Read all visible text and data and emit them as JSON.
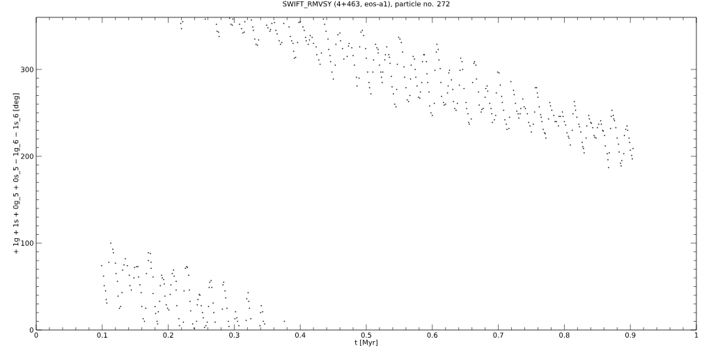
{
  "chart_data": {
    "type": "scatter",
    "title": "SWIFT_RMVSY (4+463, eos-a1), particle no. 272",
    "xlabel": "t [Myr]",
    "ylabel": "+ 1g + 1s + 0g_5 + 0s_5 − 1g_6 − 1s_6 [deg]",
    "xlim": [
      0,
      1
    ],
    "ylim": [
      0,
      360
    ],
    "xticks": [
      0,
      0.1,
      0.2,
      0.3,
      0.4,
      0.5,
      0.6,
      0.7,
      0.8,
      0.9,
      1
    ],
    "yticks": [
      0,
      100,
      200,
      300
    ],
    "marker": "square",
    "series": [
      {
        "color": "#000000",
        "x": [
          0.099,
          0.102,
          0.103,
          0.105,
          0.106,
          0.107,
          0.113,
          0.116,
          0.117,
          0.11,
          0.12,
          0.121,
          0.123,
          0.124,
          0.126,
          0.128,
          0.13,
          0.131,
          0.133,
          0.135,
          0.138,
          0.141,
          0.142,
          0.144,
          0.148,
          0.149,
          0.152,
          0.154,
          0.155,
          0.157,
          0.159,
          0.16,
          0.162,
          0.164,
          0.166,
          0.167,
          0.17,
          0.17,
          0.173,
          0.174,
          0.174,
          0.177,
          0.177,
          0.18,
          0.181,
          0.183,
          0.184,
          0.185,
          0.187,
          0.188,
          0.19,
          0.191,
          0.193,
          0.194,
          0.195,
          0.197,
          0.199,
          0.201,
          0.203,
          0.204,
          0.206,
          0.208,
          0.209,
          0.212,
          0.212,
          0.213,
          0.216,
          0.217,
          0.223,
          0.224,
          0.226,
          0.228,
          0.229,
          0.231,
          0.232,
          0.233,
          0.234,
          0.237,
          0.239,
          0.243,
          0.244,
          0.245,
          0.247,
          0.248,
          0.25,
          0.252,
          0.253,
          0.255,
          0.257,
          0.259,
          0.261,
          0.262,
          0.263,
          0.265,
          0.266,
          0.268,
          0.269,
          0.271,
          0.282,
          0.283,
          0.284,
          0.286,
          0.287,
          0.289,
          0.291,
          0.292,
          0.301,
          0.302,
          0.304,
          0.305,
          0.307,
          0.318,
          0.319,
          0.321,
          0.322,
          0.323,
          0.325,
          0.339,
          0.34,
          0.341,
          0.343,
          0.344,
          0.346,
          0.376,
          0.219,
          0.222,
          0.22,
          0.256,
          0.273,
          0.274,
          0.276,
          0.277,
          0.293,
          0.295,
          0.297,
          0.298,
          0.308,
          0.311,
          0.313,
          0.315,
          0.316,
          0.326,
          0.328,
          0.329,
          0.331,
          0.333,
          0.335,
          0.337,
          0.349,
          0.351,
          0.354,
          0.355,
          0.357,
          0.361,
          0.363,
          0.365,
          0.368,
          0.37,
          0.372,
          0.375,
          0.383,
          0.385,
          0.387,
          0.389,
          0.39,
          0.391,
          0.393,
          0.396,
          0.398,
          0.4,
          0.404,
          0.406,
          0.408,
          0.409,
          0.412,
          0.414,
          0.415,
          0.418,
          0.42,
          0.424,
          0.425,
          0.428,
          0.43,
          0.432,
          0.435,
          0.437,
          0.439,
          0.442,
          0.443,
          0.445,
          0.446,
          0.448,
          0.45,
          0.453,
          0.454,
          0.457,
          0.46,
          0.461,
          0.464,
          0.466,
          0.471,
          0.473,
          0.474,
          0.478,
          0.48,
          0.482,
          0.485,
          0.486,
          0.489,
          0.49,
          0.492,
          0.494,
          0.496,
          0.499,
          0.5,
          0.502,
          0.504,
          0.505,
          0.507,
          0.51,
          0.511,
          0.514,
          0.516,
          0.518,
          0.518,
          0.52,
          0.522,
          0.523,
          0.524,
          0.525,
          0.528,
          0.529,
          0.531,
          0.534,
          0.535,
          0.536,
          0.538,
          0.539,
          0.541,
          0.543,
          0.545,
          0.546,
          0.547,
          0.549,
          0.551,
          0.553,
          0.555,
          0.557,
          0.558,
          0.56,
          0.562,
          0.564,
          0.566,
          0.567,
          0.568,
          0.571,
          0.573,
          0.574,
          0.575,
          0.577,
          0.579,
          0.581,
          0.582,
          0.584,
          0.585,
          0.587,
          0.588,
          0.591,
          0.592,
          0.593,
          0.595,
          0.596,
          0.598,
          0.6,
          0.603,
          0.604,
          0.606,
          0.607,
          0.609,
          0.61,
          0.612,
          0.613,
          0.614,
          0.617,
          0.618,
          0.62,
          0.623,
          0.624,
          0.625,
          0.626,
          0.629,
          0.631,
          0.632,
          0.634,
          0.636,
          0.638,
          0.641,
          0.642,
          0.643,
          0.645,
          0.646,
          0.648,
          0.651,
          0.652,
          0.654,
          0.655,
          0.656,
          0.659,
          0.661,
          0.663,
          0.664,
          0.666,
          0.667,
          0.67,
          0.671,
          0.674,
          0.675,
          0.677,
          0.68,
          0.681,
          0.683,
          0.684,
          0.687,
          0.689,
          0.69,
          0.691,
          0.694,
          0.696,
          0.697,
          0.699,
          0.701,
          0.703,
          0.705,
          0.706,
          0.708,
          0.71,
          0.712,
          0.713,
          0.716,
          0.717,
          0.719,
          0.723,
          0.724,
          0.726,
          0.728,
          0.73,
          0.731,
          0.733,
          0.734,
          0.737,
          0.739,
          0.741,
          0.744,
          0.746,
          0.748,
          0.75,
          0.753,
          0.755,
          0.756,
          0.758,
          0.759,
          0.76,
          0.762,
          0.764,
          0.765,
          0.766,
          0.768,
          0.77,
          0.771,
          0.772,
          0.776,
          0.778,
          0.779,
          0.781,
          0.784,
          0.786,
          0.788,
          0.791,
          0.792,
          0.794,
          0.797,
          0.798,
          0.8,
          0.802,
          0.804,
          0.806,
          0.807,
          0.809,
          0.812,
          0.813,
          0.815,
          0.816,
          0.817,
          0.819,
          0.822,
          0.823,
          0.825,
          0.827,
          0.828,
          0.829,
          0.83,
          0.833,
          0.834,
          0.837,
          0.838,
          0.84,
          0.841,
          0.843,
          0.845,
          0.846,
          0.848,
          0.85,
          0.852,
          0.855,
          0.856,
          0.858,
          0.859,
          0.861,
          0.862,
          0.865,
          0.866,
          0.867,
          0.868,
          0.87,
          0.871,
          0.872,
          0.874,
          0.875,
          0.876,
          0.878,
          0.88,
          0.882,
          0.883,
          0.885,
          0.886,
          0.887,
          0.89,
          0.891,
          0.893,
          0.895,
          0.896,
          0.898,
          0.899,
          0.9,
          0.902,
          0.903,
          0.904
        ],
        "values": [
          74,
          62,
          51,
          45,
          35,
          31,
          100,
          93,
          89,
          78,
          77,
          65,
          56,
          39,
          25,
          27,
          43,
          69,
          75,
          82,
          74,
          63,
          51,
          46,
          60,
          72,
          73,
          73,
          61,
          52,
          43,
          27,
          13,
          10,
          25,
          65,
          80,
          89,
          88,
          78,
          71,
          61,
          42,
          27,
          19,
          10,
          7,
          21,
          33,
          51,
          63,
          60,
          58,
          53,
          39,
          29,
          25,
          23,
          41,
          52,
          65,
          69,
          62,
          56,
          46,
          28,
          13,
          5,
          9,
          45,
          71,
          73,
          72,
          63,
          46,
          33,
          22,
          7,
          2,
          10,
          29,
          35,
          41,
          40,
          28,
          20,
          14,
          3,
          5,
          9,
          27,
          49,
          55,
          57,
          49,
          31,
          20,
          9,
          24,
          52,
          55,
          45,
          37,
          25,
          10,
          4,
          13,
          21,
          14,
          10,
          5,
          11,
          36,
          43,
          33,
          25,
          13,
          5,
          20,
          28,
          21,
          10,
          7,
          10,
          353,
          355,
          347,
          358,
          352,
          344,
          343,
          338,
          359,
          352,
          351,
          358,
          352,
          347,
          342,
          343,
          355,
          357,
          349,
          345,
          335,
          329,
          328,
          334,
          351,
          348,
          344,
          346,
          353,
          354,
          345,
          341,
          333,
          329,
          331,
          353,
          349,
          338,
          333,
          330,
          321,
          313,
          314,
          331,
          354,
          355,
          349,
          345,
          337,
          333,
          329,
          334,
          339,
          337,
          330,
          326,
          317,
          311,
          306,
          319,
          358,
          352,
          344,
          335,
          323,
          316,
          309,
          297,
          289,
          305,
          329,
          340,
          342,
          333,
          324,
          312,
          315,
          327,
          330,
          325,
          316,
          305,
          291,
          281,
          290,
          326,
          343,
          345,
          339,
          324,
          313,
          297,
          285,
          279,
          272,
          297,
          311,
          329,
          325,
          323,
          319,
          305,
          297,
          291,
          285,
          297,
          311,
          317,
          326,
          317,
          314,
          307,
          292,
          280,
          272,
          260,
          257,
          277,
          306,
          337,
          335,
          331,
          320,
          303,
          291,
          279,
          265,
          263,
          270,
          289,
          305,
          315,
          312,
          300,
          291,
          281,
          268,
          267,
          274,
          285,
          309,
          317,
          317,
          309,
          295,
          285,
          274,
          258,
          250,
          247,
          261,
          299,
          320,
          329,
          323,
          311,
          301,
          285,
          269,
          262,
          259,
          260,
          273,
          281,
          296,
          299,
          288,
          277,
          263,
          255,
          253,
          261,
          282,
          299,
          313,
          309,
          300,
          278,
          262,
          255,
          249,
          239,
          237,
          243,
          285,
          307,
          309,
          305,
          289,
          274,
          259,
          251,
          254,
          255,
          268,
          278,
          281,
          275,
          261,
          255,
          249,
          239,
          242,
          247,
          273,
          297,
          296,
          282,
          269,
          262,
          253,
          242,
          237,
          231,
          232,
          245,
          286,
          276,
          271,
          261,
          252,
          249,
          244,
          249,
          255,
          266,
          257,
          255,
          249,
          239,
          235,
          228,
          237,
          251,
          279,
          279,
          273,
          268,
          257,
          248,
          245,
          240,
          231,
          227,
          226,
          221,
          243,
          262,
          258,
          253,
          247,
          240,
          240,
          235,
          246,
          246,
          251,
          246,
          240,
          236,
          227,
          223,
          221,
          213,
          230,
          249,
          263,
          258,
          253,
          245,
          237,
          234,
          228,
          216,
          211,
          209,
          204,
          221,
          235,
          247,
          243,
          239,
          238,
          233,
          224,
          222,
          221,
          233,
          237,
          241,
          237,
          230,
          229,
          224,
          212,
          203,
          196,
          187,
          204,
          232,
          246,
          253,
          247,
          243,
          241,
          233,
          221,
          214,
          205,
          192,
          189,
          195,
          203,
          224,
          231,
          235,
          230,
          221,
          216,
          207,
          201,
          197,
          209
        ]
      }
    ]
  }
}
